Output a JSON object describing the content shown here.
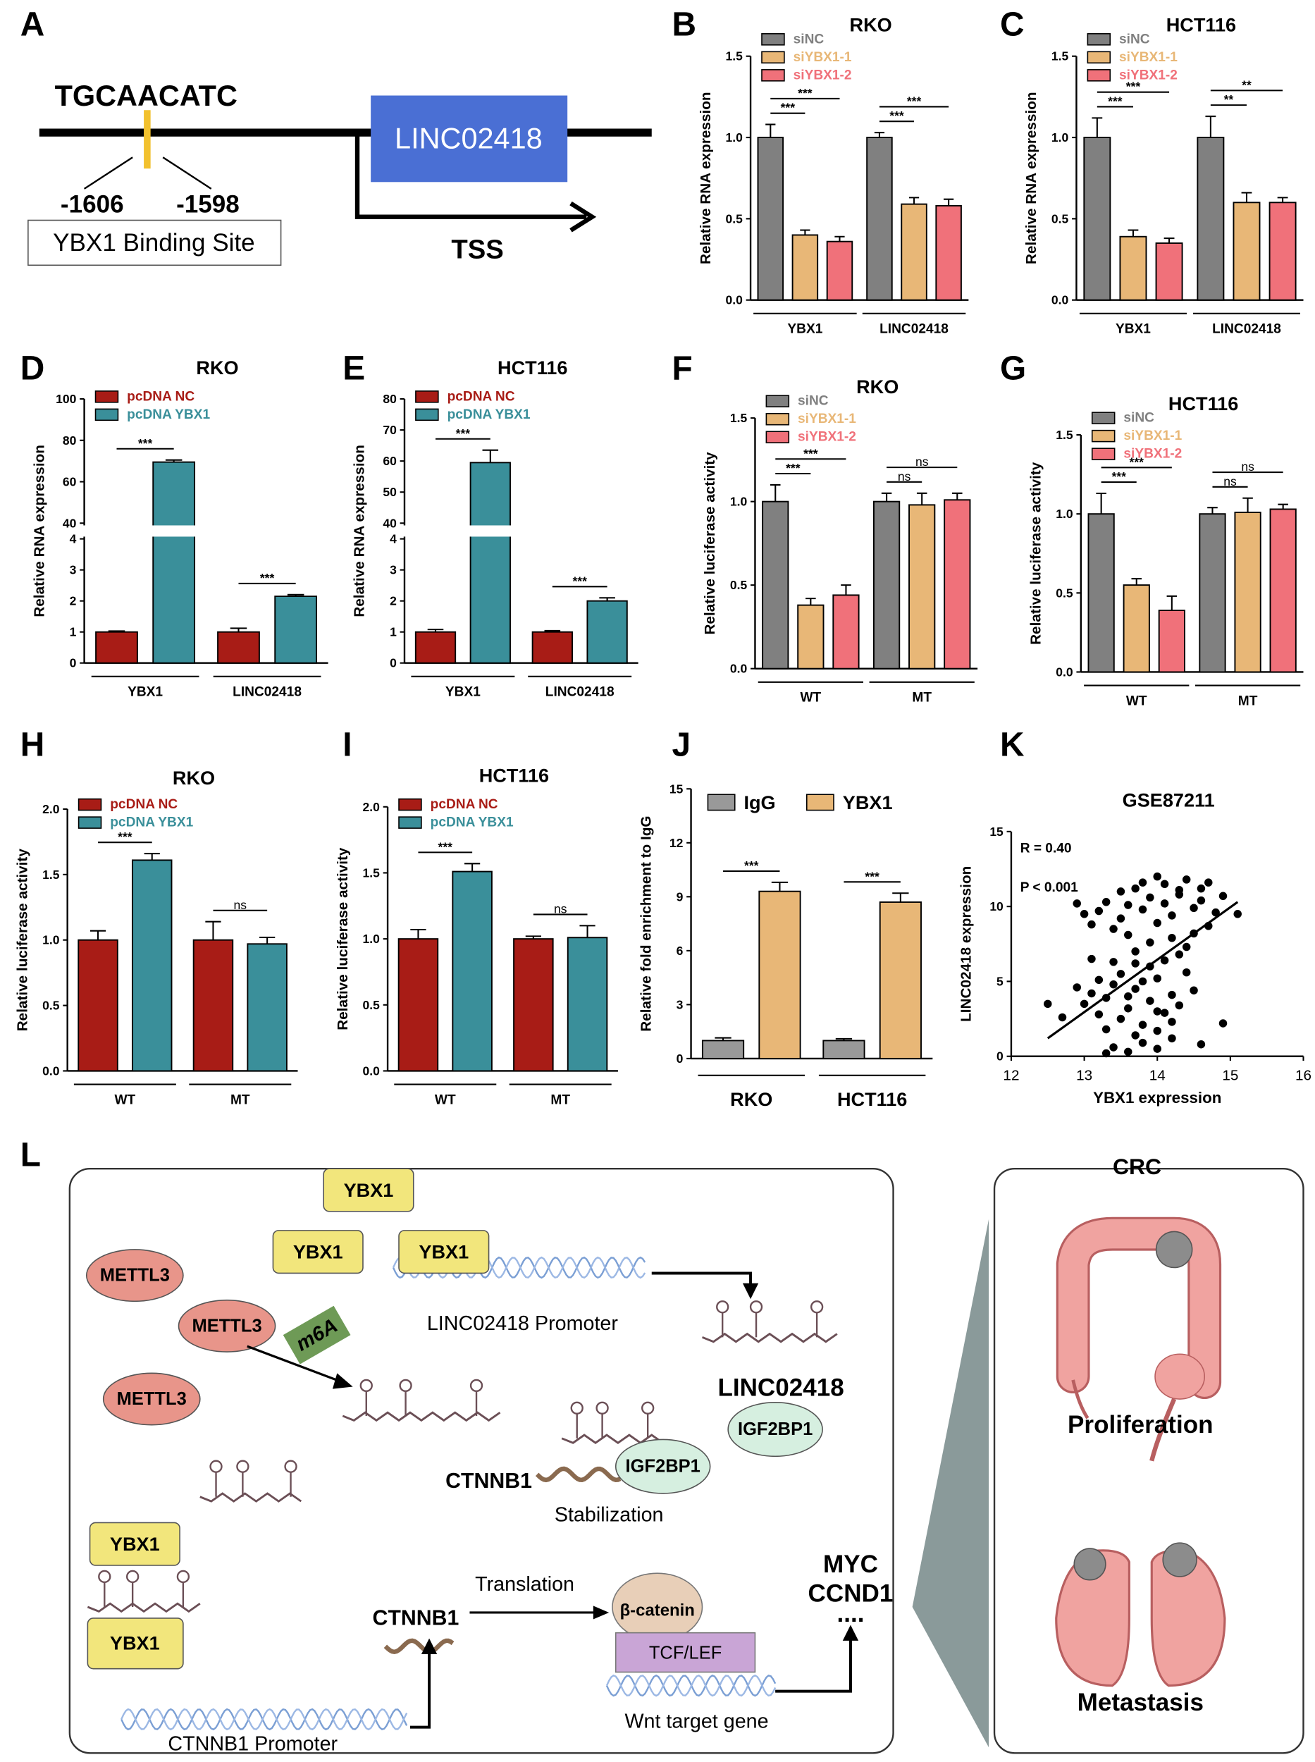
{
  "panel_labels": [
    "A",
    "B",
    "C",
    "D",
    "E",
    "F",
    "G",
    "H",
    "I",
    "J",
    "K",
    "L"
  ],
  "panel_a": {
    "motif": "TGCAACATC",
    "start": "-1606",
    "end": "-1598",
    "site": "YBX1 Binding Site",
    "gene": "LINC02418",
    "tss": "TSS"
  },
  "chart_data": [
    {
      "type": "bar",
      "title": "RKO",
      "ylabel": "Relative RNA expression",
      "categories": [
        "YBX1",
        "LINC02418"
      ],
      "series": [
        {
          "name": "siNC",
          "color": "#808080",
          "values": [
            1,
            1
          ],
          "errors": [
            0.08,
            0.03
          ]
        },
        {
          "name": "siYBX1-1",
          "color": "#e8b777",
          "values": [
            0.4,
            0.59
          ],
          "errors": [
            0.03,
            0.04
          ]
        },
        {
          "name": "siYBX1-2",
          "color": "#f0717a",
          "values": [
            0.36,
            0.58
          ],
          "errors": [
            0.03,
            0.04
          ]
        }
      ],
      "ylim": [
        0,
        1.5
      ],
      "yticks": [
        {
          "value": 0,
          "label": "0.0"
        },
        0.5,
        {
          "value": 1,
          "label": "1.0"
        },
        1.5
      ],
      "legend": "upper left",
      "comparisons": [
        {
          "category": "YBX1",
          "series": [
            "siNC",
            "siYBX1-1"
          ],
          "label": "***"
        },
        {
          "category": "YBX1",
          "series": [
            "siNC",
            "siYBX1-2"
          ],
          "label": "***"
        },
        {
          "category": "LINC02418",
          "series": [
            "siNC",
            "siYBX1-1"
          ],
          "label": "***"
        },
        {
          "category": "LINC02418",
          "series": [
            "siNC",
            "siYBX1-2"
          ],
          "label": "***"
        }
      ]
    },
    {
      "type": "bar",
      "title": "HCT116",
      "ylabel": "Relative RNA expression",
      "categories": [
        "YBX1",
        "LINC02418"
      ],
      "series": [
        {
          "name": "siNC",
          "color": "#808080",
          "values": [
            1,
            1
          ],
          "errors": [
            0.12,
            0.13
          ]
        },
        {
          "name": "siYBX1-1",
          "color": "#e8b777",
          "values": [
            0.39,
            0.6
          ],
          "errors": [
            0.04,
            0.06
          ]
        },
        {
          "name": "siYBX1-2",
          "color": "#f0717a",
          "values": [
            0.35,
            0.6
          ],
          "errors": [
            0.03,
            0.03
          ]
        }
      ],
      "ylim": [
        0,
        1.5
      ],
      "yticks": [
        {
          "value": 0,
          "label": "0.0"
        },
        0.5,
        {
          "value": 1,
          "label": "1.0"
        },
        1.5
      ],
      "legend": "upper left",
      "comparisons": [
        {
          "category": "YBX1",
          "series": [
            "siNC",
            "siYBX1-1"
          ],
          "label": "***"
        },
        {
          "category": "YBX1",
          "series": [
            "siNC",
            "siYBX1-2"
          ],
          "label": "***"
        },
        {
          "category": "LINC02418",
          "series": [
            "siNC",
            "siYBX1-1"
          ],
          "label": "**"
        },
        {
          "category": "LINC02418",
          "series": [
            "siNC",
            "siYBX1-2"
          ],
          "label": "**"
        }
      ]
    },
    {
      "type": "bar",
      "title": "RKO",
      "ylabel": "Relative RNA expression",
      "categories": [
        "YBX1",
        "LINC02418"
      ],
      "series": [
        {
          "name": "pcDNA NC",
          "color": "#a81c16",
          "values": [
            1,
            1
          ],
          "errors": [
            0.03,
            0.12
          ]
        },
        {
          "name": "pcDNA YBX1",
          "color": "#3a8f9a",
          "values": [
            69.5,
            2.15
          ],
          "errors": [
            1,
            0.05
          ]
        }
      ],
      "ylim": [
        0,
        100
      ],
      "axis_break": [
        4,
        40
      ],
      "yticks": [
        0,
        1,
        2,
        3,
        4,
        40,
        60,
        80,
        100
      ],
      "legend": "upper left",
      "comparisons": [
        {
          "category": "YBX1",
          "series": [
            "pcDNA NC",
            "pcDNA YBX1"
          ],
          "label": "***"
        },
        {
          "category": "LINC02418",
          "series": [
            "pcDNA NC",
            "pcDNA YBX1"
          ],
          "label": "***"
        }
      ]
    },
    {
      "type": "bar",
      "title": "HCT116",
      "ylabel": "Relative RNA expression",
      "categories": [
        "YBX1",
        "LINC02418"
      ],
      "series": [
        {
          "name": "pcDNA NC",
          "color": "#a81c16",
          "values": [
            1,
            1
          ],
          "errors": [
            0.08,
            0.04
          ]
        },
        {
          "name": "pcDNA YBX1",
          "color": "#3a8f9a",
          "values": [
            59.5,
            2.0
          ],
          "errors": [
            4,
            0.1
          ]
        }
      ],
      "ylim": [
        0,
        80
      ],
      "axis_break": [
        4,
        40
      ],
      "yticks": [
        0,
        1,
        2,
        3,
        4,
        40,
        50,
        60,
        70,
        80
      ],
      "legend": "upper left",
      "comparisons": [
        {
          "category": "YBX1",
          "series": [
            "pcDNA NC",
            "pcDNA YBX1"
          ],
          "label": "***"
        },
        {
          "category": "LINC02418",
          "series": [
            "pcDNA NC",
            "pcDNA YBX1"
          ],
          "label": "***"
        }
      ]
    },
    {
      "type": "bar",
      "title": "RKO",
      "ylabel": "Relative luciferase activity",
      "categories": [
        "WT",
        "MT"
      ],
      "series": [
        {
          "name": "siNC",
          "color": "#808080",
          "values": [
            1,
            1
          ],
          "errors": [
            0.1,
            0.05
          ]
        },
        {
          "name": "siYBX1-1",
          "color": "#e8b777",
          "values": [
            0.38,
            0.98
          ],
          "errors": [
            0.04,
            0.07
          ]
        },
        {
          "name": "siYBX1-2",
          "color": "#f0717a",
          "values": [
            0.44,
            1.01
          ],
          "errors": [
            0.06,
            0.04
          ]
        }
      ],
      "ylim": [
        0,
        1.5
      ],
      "yticks": [
        {
          "value": 0,
          "label": "0.0"
        },
        0.5,
        {
          "value": 1,
          "label": "1.0"
        },
        1.5
      ],
      "legend": "upper left",
      "comparisons": [
        {
          "category": "WT",
          "series": [
            "siNC",
            "siYBX1-1"
          ],
          "label": "***"
        },
        {
          "category": "WT",
          "series": [
            "siNC",
            "siYBX1-2"
          ],
          "label": "***"
        },
        {
          "category": "MT",
          "series": [
            "siNC",
            "siYBX1-1"
          ],
          "label": "ns"
        },
        {
          "category": "MT",
          "series": [
            "siNC",
            "siYBX1-2"
          ],
          "label": "ns"
        }
      ]
    },
    {
      "type": "bar",
      "title": "HCT116",
      "ylabel": "Relative luciferase activity",
      "categories": [
        "WT",
        "MT"
      ],
      "series": [
        {
          "name": "siNC",
          "color": "#808080",
          "values": [
            1,
            1
          ],
          "errors": [
            0.13,
            0.04
          ]
        },
        {
          "name": "siYBX1-1",
          "color": "#e8b777",
          "values": [
            0.55,
            1.01
          ],
          "errors": [
            0.04,
            0.09
          ]
        },
        {
          "name": "siYBX1-2",
          "color": "#f0717a",
          "values": [
            0.39,
            1.03
          ],
          "errors": [
            0.09,
            0.03
          ]
        }
      ],
      "ylim": [
        0,
        1.5
      ],
      "yticks": [
        {
          "value": 0,
          "label": "0.0"
        },
        0.5,
        {
          "value": 1,
          "label": "1.0"
        },
        1.5
      ],
      "legend": "upper left",
      "comparisons": [
        {
          "category": "WT",
          "series": [
            "siNC",
            "siYBX1-1"
          ],
          "label": "***"
        },
        {
          "category": "WT",
          "series": [
            "siNC",
            "siYBX1-2"
          ],
          "label": "***"
        },
        {
          "category": "MT",
          "series": [
            "siNC",
            "siYBX1-1"
          ],
          "label": "ns"
        },
        {
          "category": "MT",
          "series": [
            "siNC",
            "siYBX1-2"
          ],
          "label": "ns"
        }
      ]
    },
    {
      "type": "bar",
      "title": "RKO",
      "ylabel": "Relative luciferase activity",
      "categories": [
        "WT",
        "MT"
      ],
      "series": [
        {
          "name": "pcDNA NC",
          "color": "#a81c16",
          "values": [
            1,
            1
          ],
          "errors": [
            0.07,
            0.14
          ]
        },
        {
          "name": "pcDNA YBX1",
          "color": "#3a8f9a",
          "values": [
            1.61,
            0.97
          ],
          "errors": [
            0.05,
            0.05
          ]
        }
      ],
      "ylim": [
        0,
        2
      ],
      "yticks": [
        {
          "value": 0,
          "label": "0.0"
        },
        0.5,
        {
          "value": 1,
          "label": "1.0"
        },
        1.5,
        {
          "value": 2,
          "label": "2.0"
        }
      ],
      "legend": "upper left",
      "comparisons": [
        {
          "category": "WT",
          "series": [
            "pcDNA NC",
            "pcDNA YBX1"
          ],
          "label": "***"
        },
        {
          "category": "MT",
          "series": [
            "pcDNA NC",
            "pcDNA YBX1"
          ],
          "label": "ns"
        }
      ]
    },
    {
      "type": "bar",
      "title": "HCT116",
      "ylabel": "Relative luciferase activity",
      "categories": [
        "WT",
        "MT"
      ],
      "series": [
        {
          "name": "pcDNA NC",
          "color": "#a81c16",
          "values": [
            1,
            1
          ],
          "errors": [
            0.07,
            0.02
          ]
        },
        {
          "name": "pcDNA YBX1",
          "color": "#3a8f9a",
          "values": [
            1.51,
            1.01
          ],
          "errors": [
            0.06,
            0.09
          ]
        }
      ],
      "ylim": [
        0,
        2
      ],
      "yticks": [
        {
          "value": 0,
          "label": "0.0"
        },
        0.5,
        {
          "value": 1,
          "label": "1.0"
        },
        1.5,
        {
          "value": 2,
          "label": "2.0"
        }
      ],
      "legend": "upper left",
      "comparisons": [
        {
          "category": "WT",
          "series": [
            "pcDNA NC",
            "pcDNA YBX1"
          ],
          "label": "***"
        },
        {
          "category": "MT",
          "series": [
            "pcDNA NC",
            "pcDNA YBX1"
          ],
          "label": "ns"
        }
      ]
    },
    {
      "type": "bar",
      "ylabel": "Relative fold enrichment to IgG",
      "categories": [
        "RKO",
        "HCT116"
      ],
      "series": [
        {
          "name": "IgG",
          "color": "#999999",
          "values": [
            1.0,
            1.0
          ],
          "errors": [
            0.15,
            0.1
          ]
        },
        {
          "name": "YBX1",
          "color": "#e8b777",
          "values": [
            9.3,
            8.7
          ],
          "errors": [
            0.5,
            0.5
          ]
        }
      ],
      "ylim": [
        0,
        15
      ],
      "yticks": [
        0,
        3,
        6,
        9,
        12,
        15
      ],
      "legend": "top",
      "comparisons": [
        {
          "category": "RKO",
          "series": [
            "IgG",
            "YBX1"
          ],
          "label": "***"
        },
        {
          "category": "HCT116",
          "series": [
            "IgG",
            "YBX1"
          ],
          "label": "***"
        }
      ]
    },
    {
      "type": "scatter",
      "title": "GSE87211",
      "xlabel": "YBX1 expression",
      "ylabel": "LINC02418 expression",
      "annotations": [
        "R = 0.40",
        "P < 0.001"
      ],
      "xlim": [
        12,
        16
      ],
      "xticks": [
        12,
        13,
        14,
        15,
        16
      ],
      "ylim": [
        0,
        15
      ],
      "yticks": [
        0,
        5,
        10,
        15
      ],
      "color": "#000000",
      "x": [
        13.4,
        13.5,
        13.6,
        13.7,
        13.8,
        13.9,
        14.0,
        14.1,
        14.2,
        14.3,
        14.4,
        14.5,
        14.6,
        14.7,
        14.8,
        13.3,
        13.6,
        13.9,
        14.2,
        14.5,
        14.0,
        14.3,
        13.8,
        14.6,
        14.1,
        13.5,
        13.2,
        13.1,
        14.9,
        15.1,
        14.4,
        13.7,
        13.0,
        12.9,
        14.7,
        13.0,
        13.1,
        13.2,
        13.3,
        13.4,
        13.5,
        13.6,
        13.7,
        13.8,
        13.9,
        14.0,
        14.1,
        14.2,
        14.3,
        14.4,
        13.3,
        13.5,
        13.7,
        13.9,
        14.1,
        13.2,
        13.4,
        13.6,
        13.8,
        14.0,
        14.2,
        14.5,
        12.5,
        12.7,
        12.9,
        13.4,
        13.6,
        13.8,
        14.0,
        14.2,
        14.6,
        13.3,
        14.9,
        14.3,
        13.1,
        13.7,
        14.0
      ],
      "y": [
        8.5,
        9.2,
        10.1,
        11.2,
        9.8,
        10.6,
        8.9,
        11.5,
        9.4,
        10.8,
        11.8,
        9.9,
        10.4,
        8.7,
        9.6,
        10.3,
        8.1,
        7.6,
        7.9,
        8.2,
        12.0,
        11.1,
        11.6,
        11.2,
        10.2,
        11.0,
        9.7,
        8.8,
        10.7,
        9.5,
        7.3,
        7.0,
        9.5,
        10.2,
        11.6,
        3.5,
        4.2,
        2.8,
        3.9,
        4.8,
        2.5,
        3.2,
        4.5,
        2.1,
        3.7,
        5.2,
        2.9,
        4.1,
        3.4,
        5.6,
        1.8,
        5.5,
        1.4,
        6.0,
        6.4,
        5.1,
        6.3,
        4.0,
        5.0,
        3.0,
        2.3,
        4.4,
        3.5,
        2.6,
        4.6,
        0.6,
        0.3,
        0.9,
        0.5,
        1.2,
        0.8,
        0.2,
        2.2,
        6.8,
        6.5,
        6.2,
        1.7
      ],
      "fit": {
        "x": [
          12.5,
          15.1
        ],
        "y": [
          1.2,
          10.3
        ]
      }
    }
  ],
  "panel_l": {
    "ybx1": [
      "YBX1",
      "YBX1",
      "YBX1",
      "YBX1",
      "YBX1"
    ],
    "mettl3": [
      "METTL3",
      "METTL3",
      "METTL3"
    ],
    "m6a": "m6A",
    "linc_promoter": "LINC02418 Promoter",
    "linc": "LINC02418",
    "igf2bp1": [
      "IGF2BP1",
      "IGF2BP1"
    ],
    "ctnnb1": [
      "CTNNB1",
      "CTNNB1"
    ],
    "stabilization": "Stabilization",
    "translation": "Translation",
    "beta_catenin": "β-catenin",
    "tcf_lef": "TCF/LEF",
    "targets": [
      "MYC",
      "CCND1",
      "...."
    ],
    "wnt_target": "Wnt target gene",
    "ctnnb1_promoter": "CTNNB1 Promoter",
    "crc": "CRC",
    "proliferation": "Proliferation",
    "metastasis": "Metastasis"
  }
}
